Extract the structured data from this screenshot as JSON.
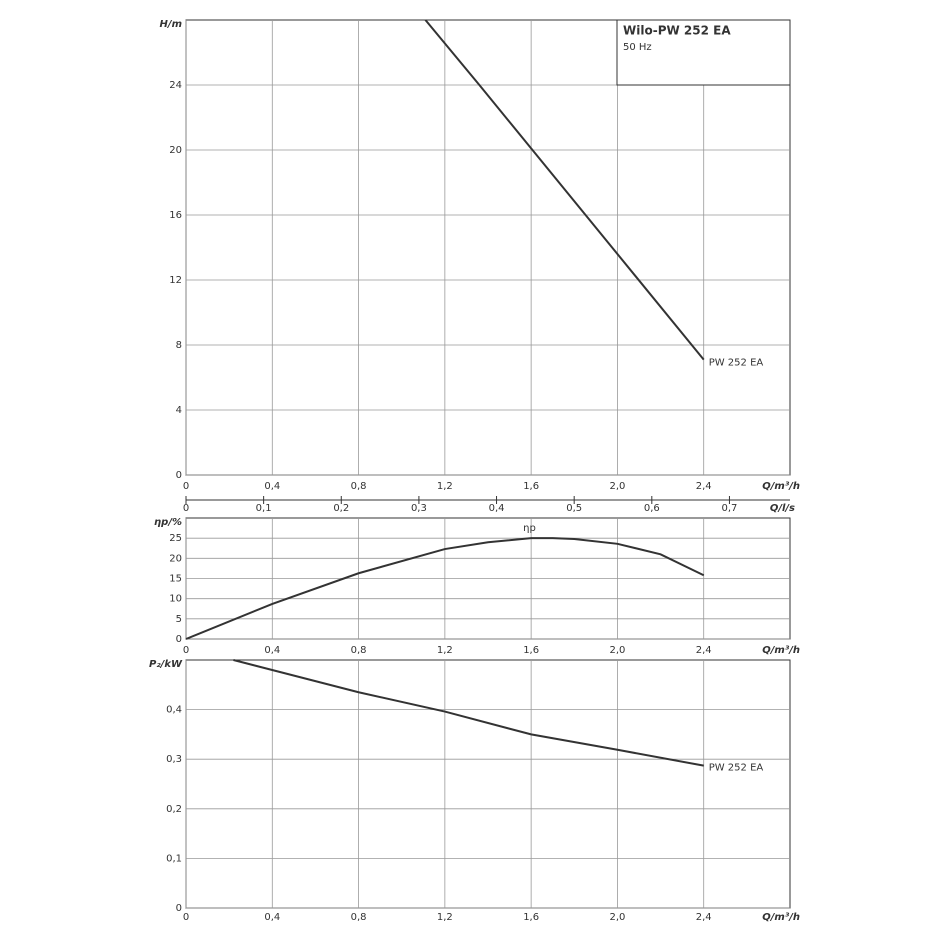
{
  "chart_data": [
    {
      "type": "line",
      "title": "Wilo-PW 252 EA",
      "subtitle": "50 Hz",
      "x_label": "Q/m³/h",
      "y_label": "H/m",
      "x2_label": "Q/l/s",
      "xlim": [
        0,
        2.8
      ],
      "xticks": [
        0,
        {
          "value": 0.4,
          "label": "0,4"
        },
        {
          "value": 0.8,
          "label": "0,8"
        },
        {
          "value": 1.2,
          "label": "1,2"
        },
        {
          "value": 1.6,
          "label": "1,6"
        },
        {
          "value": 2.0,
          "label": "2,0"
        },
        {
          "value": 2.4,
          "label": "2,4"
        }
      ],
      "x2lim": [
        0,
        0.778
      ],
      "x2ticks": [
        0,
        {
          "value": 0.1,
          "label": "0,1"
        },
        {
          "value": 0.2,
          "label": "0,2"
        },
        {
          "value": 0.3,
          "label": "0,3"
        },
        {
          "value": 0.4,
          "label": "0,4"
        },
        {
          "value": 0.5,
          "label": "0,5"
        },
        {
          "value": 0.6,
          "label": "0,6"
        },
        {
          "value": 0.7,
          "label": "0,7"
        }
      ],
      "ylim": [
        0,
        28
      ],
      "yticks": [
        0,
        4,
        8,
        12,
        16,
        20,
        24
      ],
      "grid": true,
      "series": [
        {
          "name": "PW 252 EA",
          "color": "#333333",
          "x": [
            1.11,
            1.36,
            1.6,
            2.0,
            2.4
          ],
          "values": [
            28,
            24,
            20.1,
            13.6,
            7.1
          ]
        }
      ]
    },
    {
      "type": "line",
      "x_label": "Q/m³/h",
      "y_label": "ηp/%",
      "xlim": [
        0,
        2.8
      ],
      "xticks": [
        0,
        {
          "value": 0.4,
          "label": "0,4"
        },
        {
          "value": 0.8,
          "label": "0,8"
        },
        {
          "value": 1.2,
          "label": "1,2"
        },
        {
          "value": 1.6,
          "label": "1,6"
        },
        {
          "value": 2.0,
          "label": "2,0"
        },
        {
          "value": 2.4,
          "label": "2,4"
        }
      ],
      "ylim": [
        0,
        30
      ],
      "yticks": [
        0,
        5,
        10,
        15,
        20,
        25
      ],
      "grid": true,
      "series": [
        {
          "name": "ηp",
          "color": "#333333",
          "x": [
            0,
            0.4,
            0.8,
            1.2,
            1.4,
            1.6,
            1.7,
            1.8,
            2.0,
            2.2,
            2.4
          ],
          "values": [
            0,
            8.7,
            16.3,
            22.3,
            24.0,
            25.0,
            25.0,
            24.8,
            23.6,
            21.0,
            15.8
          ]
        }
      ]
    },
    {
      "type": "line",
      "x_label": "Q/m³/h",
      "y_label": "P₂/kW",
      "xlim": [
        0,
        2.8
      ],
      "xticks": [
        0,
        {
          "value": 0.4,
          "label": "0,4"
        },
        {
          "value": 0.8,
          "label": "0,8"
        },
        {
          "value": 1.2,
          "label": "1,2"
        },
        {
          "value": 1.6,
          "label": "1,6"
        },
        {
          "value": 2.0,
          "label": "2,0"
        },
        {
          "value": 2.4,
          "label": "2,4"
        }
      ],
      "ylim": [
        0,
        0.5
      ],
      "yticks": [
        0,
        {
          "value": 0.1,
          "label": "0,1"
        },
        {
          "value": 0.2,
          "label": "0,2"
        },
        {
          "value": 0.3,
          "label": "0,3"
        },
        {
          "value": 0.4,
          "label": "0,4"
        }
      ],
      "grid": true,
      "series": [
        {
          "name": "PW 252 EA",
          "color": "#333333",
          "x": [
            0.22,
            0.8,
            1.2,
            1.6,
            2.0,
            2.4
          ],
          "values": [
            0.5,
            0.435,
            0.396,
            0.35,
            0.319,
            0.287
          ]
        }
      ]
    }
  ]
}
